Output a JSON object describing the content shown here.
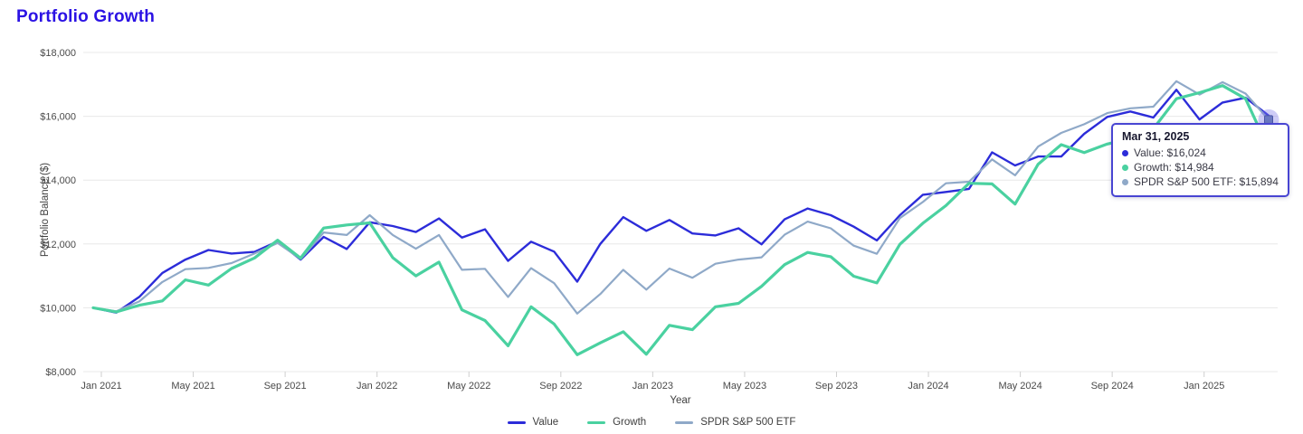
{
  "page": {
    "title": "Portfolio Growth"
  },
  "accent_color": "#2b12e4",
  "chart_data": {
    "type": "line",
    "title": "Portfolio Growth",
    "xlabel": "Year",
    "ylabel": "Portfolio Balance ($)",
    "ylim": [
      8000,
      18000
    ],
    "grid": true,
    "legend_position": "bottom",
    "x_range": "Dec 2020 month-end through Mar 2025 month-end, monthly points",
    "yticks": [
      {
        "value": 18000,
        "label": "$18,000"
      },
      {
        "value": 16000,
        "label": "$16,000"
      },
      {
        "value": 14000,
        "label": "$14,000"
      },
      {
        "value": 12000,
        "label": "$12,000"
      },
      {
        "value": 10000,
        "label": "$10,000"
      },
      {
        "value": 8000,
        "label": "$8,000"
      }
    ],
    "xticks": [
      {
        "label": "Jan 2021",
        "month_offset": 0
      },
      {
        "label": "May 2021",
        "month_offset": 4
      },
      {
        "label": "Sep 2021",
        "month_offset": 8
      },
      {
        "label": "Jan 2022",
        "month_offset": 12
      },
      {
        "label": "May 2022",
        "month_offset": 16
      },
      {
        "label": "Sep 2022",
        "month_offset": 20
      },
      {
        "label": "Jan 2023",
        "month_offset": 24
      },
      {
        "label": "May 2023",
        "month_offset": 28
      },
      {
        "label": "Sep 2023",
        "month_offset": 32
      },
      {
        "label": "Jan 2024",
        "month_offset": 36
      },
      {
        "label": "May 2024",
        "month_offset": 40
      },
      {
        "label": "Sep 2024",
        "month_offset": 44
      },
      {
        "label": "Jan 2025",
        "month_offset": 48
      }
    ],
    "categories": [
      "Dec 2020",
      "Jan 2021",
      "Feb 2021",
      "Mar 2021",
      "Apr 2021",
      "May 2021",
      "Jun 2021",
      "Jul 2021",
      "Aug 2021",
      "Sep 2021",
      "Oct 2021",
      "Nov 2021",
      "Dec 2021",
      "Jan 2022",
      "Feb 2022",
      "Mar 2022",
      "Apr 2022",
      "May 2022",
      "Jun 2022",
      "Jul 2022",
      "Aug 2022",
      "Sep 2022",
      "Oct 2022",
      "Nov 2022",
      "Dec 2022",
      "Jan 2023",
      "Feb 2023",
      "Mar 2023",
      "Apr 2023",
      "May 2023",
      "Jun 2023",
      "Jul 2023",
      "Aug 2023",
      "Sep 2023",
      "Oct 2023",
      "Nov 2023",
      "Dec 2023",
      "Jan 2024",
      "Feb 2024",
      "Mar 2024",
      "Apr 2024",
      "May 2024",
      "Jun 2024",
      "Jul 2024",
      "Aug 2024",
      "Sep 2024",
      "Oct 2024",
      "Nov 2024",
      "Dec 2024",
      "Jan 2025",
      "Feb 2025",
      "Mar 2025"
    ],
    "series": [
      {
        "name": "Value",
        "color": "#2c2cd9",
        "stroke_width": 2.4,
        "values": [
          10000,
          9850,
          10340,
          11090,
          11510,
          11810,
          11700,
          11750,
          12080,
          11510,
          12220,
          11840,
          12680,
          12560,
          12375,
          12800,
          12200,
          12460,
          11470,
          12070,
          11760,
          10820,
          12000,
          12840,
          12410,
          12750,
          12330,
          12265,
          12490,
          11990,
          12770,
          13110,
          12900,
          12540,
          12110,
          12900,
          13540,
          13630,
          13725,
          14870,
          14460,
          14740,
          14740,
          15450,
          15980,
          16150,
          15960,
          16830,
          15900,
          16430,
          16580,
          16024
        ]
      },
      {
        "name": "Growth",
        "color": "#4ad1a0",
        "stroke_width": 3.2,
        "values": [
          10000,
          9870,
          10080,
          10215,
          10875,
          10710,
          11230,
          11560,
          12120,
          11555,
          12500,
          12595,
          12660,
          11570,
          11000,
          11430,
          9935,
          9600,
          8810,
          10030,
          9490,
          8530,
          8900,
          9250,
          8545,
          9450,
          9315,
          10030,
          10140,
          10670,
          11350,
          11735,
          11600,
          10990,
          10780,
          11990,
          12650,
          13200,
          13900,
          13880,
          13250,
          14500,
          15110,
          14860,
          15130,
          15300,
          15610,
          16550,
          16740,
          16960,
          16550,
          14984
        ]
      },
      {
        "name": "SPDR S&P 500 ETF",
        "color": "#8fa9c8",
        "stroke_width": 2.2,
        "values": [
          10000,
          9890,
          10197,
          10807,
          11211,
          11250,
          11400,
          11700,
          12030,
          11530,
          12360,
          12280,
          12900,
          12280,
          11850,
          12280,
          11190,
          11220,
          10340,
          11240,
          10770,
          9820,
          10430,
          11190,
          10570,
          11230,
          10940,
          11380,
          11510,
          11580,
          12290,
          12700,
          12490,
          11945,
          11690,
          12810,
          13315,
          13900,
          13950,
          14650,
          14150,
          15050,
          15480,
          15750,
          16100,
          16250,
          16300,
          17100,
          16680,
          17070,
          16710,
          15894
        ]
      }
    ],
    "end_markers": [
      {
        "series_index": 2,
        "shape": "square",
        "halo": "rgba(127,122,235,0.38)",
        "fill": "#6b79c2",
        "stroke": "#4b55a8"
      },
      {
        "series_index": 1,
        "shape": "diamond",
        "halo": "rgba(74,209,160,0.30)",
        "fill": "#3fd0a0",
        "stroke": "#35bd90"
      }
    ]
  },
  "tooltip": {
    "date": "Mar 31, 2025",
    "border_color": "#4845d2",
    "rows": [
      {
        "label": "Value: $16,024",
        "color": "#2c2cd9"
      },
      {
        "label": "Growth: $14,984",
        "color": "#4ad1a0"
      },
      {
        "label": "SPDR S&P 500 ETF: $15,894",
        "color": "#8fa9c8"
      }
    ]
  },
  "legend": {
    "items": [
      "Value",
      "Growth",
      "SPDR S&P 500 ETF"
    ]
  }
}
